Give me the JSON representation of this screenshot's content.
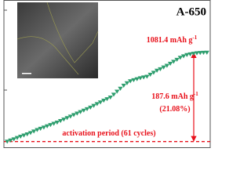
{
  "chart_data": {
    "type": "scatter",
    "title": "A-650",
    "x": [
      1,
      2,
      3,
      4,
      5,
      6,
      7,
      8,
      9,
      10,
      11,
      12,
      13,
      14,
      15,
      16,
      17,
      18,
      19,
      20,
      21,
      22,
      23,
      24,
      25,
      26,
      27,
      28,
      29,
      30,
      31,
      32,
      33,
      34,
      35,
      36,
      37,
      38,
      39,
      40,
      41,
      42,
      43,
      44,
      45,
      46,
      47,
      48,
      49,
      50,
      51,
      52,
      53,
      54,
      55,
      56,
      57,
      58,
      59,
      60,
      61
    ],
    "series": [
      {
        "color": "#2e9e6e",
        "values": [
          188,
          200,
          212,
          225,
          238,
          250,
          262,
          275,
          290,
          305,
          318,
          330,
          342,
          355,
          368,
          380,
          395,
          410,
          425,
          440,
          455,
          470,
          485,
          500,
          514,
          530,
          548,
          565,
          582,
          600,
          615,
          631,
          660,
          690,
          720,
          750,
          775,
          794,
          805,
          815,
          825,
          833,
          840,
          860,
          880,
          900,
          915,
          933,
          950,
          970,
          990,
          1010,
          1030,
          1045,
          1058,
          1065,
          1070,
          1075,
          1078,
          1080,
          1081.4
        ]
      }
    ],
    "xlim": [
      0,
      62
    ],
    "ylim": [
      130,
      1600
    ],
    "arrow": [
      187.6,
      1081.4
    ],
    "annotation_color": "#e8101a",
    "annotations": [
      {
        "text": "1081.4 mAh g",
        "sup": "-1"
      },
      {
        "text": "187.6 mAh g",
        "sup": "-1"
      },
      {
        "text": "(21.08%)"
      },
      {
        "text": "activation period (61 cycles)"
      }
    ]
  }
}
